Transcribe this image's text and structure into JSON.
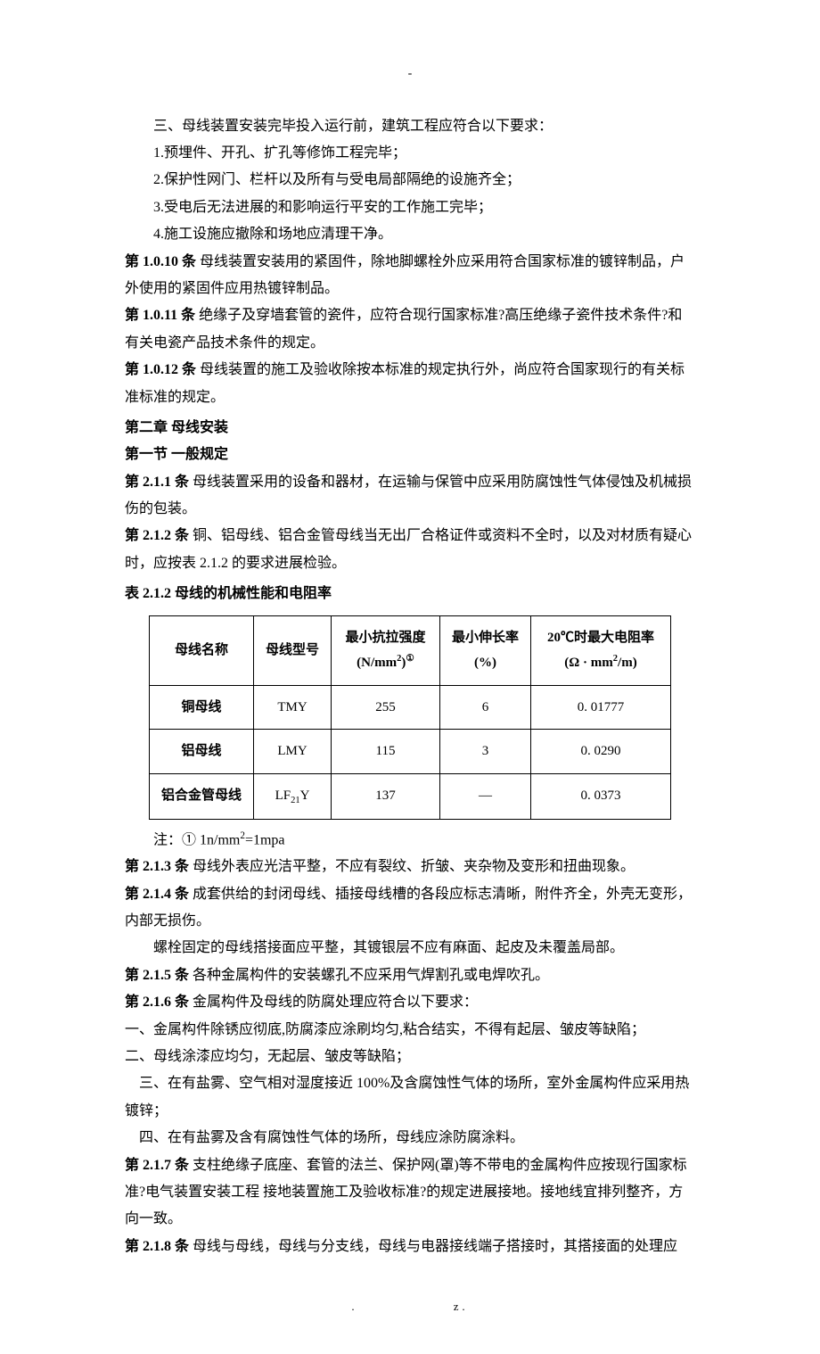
{
  "topDash": "-",
  "intro": {
    "line_san": "三、母线装置安装完毕投入运行前，建筑工程应符合以下要求：",
    "item1": "1.预埋件、开孔、扩孔等修饰工程完毕；",
    "item2": "2.保护性网门、栏杆以及所有与受电局部隔绝的设施齐全；",
    "item3": "3.受电后无法进展的和影响运行平安的工作施工完毕；",
    "item4": "4.施工设施应撤除和场地应清理干净。"
  },
  "a1010": {
    "label": "第 1.0.10 条",
    "text": "  母线装置安装用的紧固件，除地脚螺栓外应采用符合国家标准的镀锌制品，户外使用的紧固件应用热镀锌制品。"
  },
  "a1011": {
    "label": "第 1.0.11 条",
    "text": "  绝缘子及穿墙套管的瓷件，应符合现行国家标准?高压绝缘子瓷件技术条件?和有关电瓷产品技术条件的规定。"
  },
  "a1012": {
    "label": "第 1.0.12 条",
    "text": "  母线装置的施工及验收除按本标准的规定执行外，尚应符合国家现行的有关标准标准的规定。"
  },
  "chapter2": "第二章   母线安装",
  "section21": "第一节   一般规定",
  "a211": {
    "label": "第 2.1.1 条",
    "text": "   母线装置采用的设备和器材，在运输与保管中应采用防腐蚀性气体侵蚀及机械损伤的包装。"
  },
  "a212": {
    "label": "第 2.1.2 条",
    "text": "   铜、铝母线、铝合金管母线当无出厂合格证件或资料不全时，以及对材质有疑心时，应按表 2.1.2 的要求进展检验。"
  },
  "tableCaption": "表 2.1.2    母线的机械性能和电阻率",
  "table": {
    "headers": {
      "c1": "母线名称",
      "c2": "母线型号",
      "c3_l1": "最小抗拉强度",
      "c3_l2": "(N/mm",
      "c3_sup": "2",
      "c3_close": ")",
      "c3_circ": "①",
      "c4_l1": "最小伸长率",
      "c4_l2": "(%)",
      "c5_l1": "20℃时最大电阻率",
      "c5_l2": "(Ω · mm",
      "c5_sup": "2",
      "c5_close": "/m)"
    },
    "rows": [
      {
        "name": "铜母线",
        "model": "TMY",
        "tensile": "255",
        "elong": "6",
        "res": "0. 01777"
      },
      {
        "name": "铝母线",
        "model": "LMY",
        "tensile": "115",
        "elong": "3",
        "res": "0. 0290"
      },
      {
        "name": "铝合金管母线",
        "model_pre": "LF",
        "model_sub": "21",
        "model_post": "Y",
        "tensile": "137",
        "elong": "—",
        "res": "0. 0373"
      }
    ]
  },
  "tableNote_pre": "注：① 1n/mm",
  "tableNote_sup": "2",
  "tableNote_post": "=1mpa",
  "a213": {
    "label": "第 2.1.3 条",
    "text": "  母线外表应光洁平整，不应有裂纹、折皱、夹杂物及变形和扭曲现象。"
  },
  "a214": {
    "label": "第 2.1.4 条",
    "text": "  成套供给的封闭母线、插接母线槽的各段应标志清晰，附件齐全，外壳无变形，内部无损伤。"
  },
  "a214_extra": "螺栓固定的母线搭接面应平整，其镀银层不应有麻面、起皮及未覆盖局部。",
  "a215": {
    "label": "第 2.1.5 条",
    "text": "  各种金属构件的安装螺孔不应采用气焊割孔或电焊吹孔。"
  },
  "a216": {
    "label": "第 2.1.6 条",
    "text": "  金属构件及母线的防腐处理应符合以下要求："
  },
  "a216_i1": "一、金属构件除锈应彻底,防腐漆应涂刷均匀,粘合结实，不得有起层、皱皮等缺陷；",
  "a216_i2": "二、母线涂漆应均匀，无起层、皱皮等缺陷；",
  "a216_i3": "    三、在有盐雾、空气相对湿度接近 100%及含腐蚀性气体的场所，室外金属构件应采用热镀锌；",
  "a216_i4": "    四、在有盐雾及含有腐蚀性气体的场所，母线应涂防腐涂料。",
  "a217": {
    "label": "第 2.1.7 条",
    "text": "   支柱绝缘子底座、套管的法兰、保护网(罩)等不带电的金属构件应按现行国家标准?电气装置安装工程  接地装置施工及验收标准?的规定进展接地。接地线宜排列整齐，方向一致。"
  },
  "a218": {
    "label": "第 2.1.8 条",
    "text": "   母线与母线，母线与分支线，母线与电器接线端子搭接时，其搭接面的处理应"
  },
  "footer": {
    "dot": ".",
    "z": "z."
  }
}
